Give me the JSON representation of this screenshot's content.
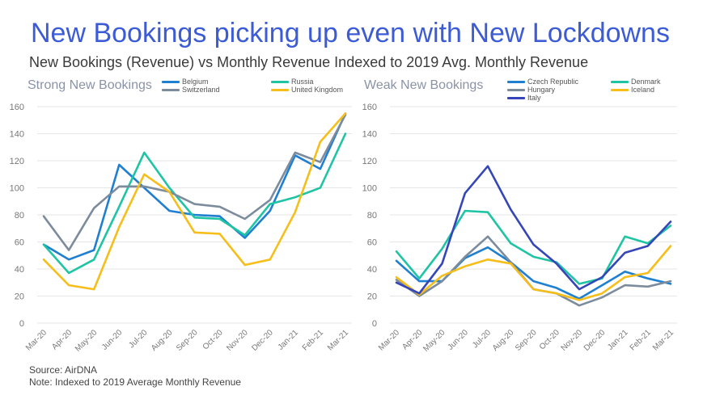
{
  "title": "New Bookings picking up even with New Lockdowns",
  "subtitle": "New Bookings (Revenue) vs Monthly Revenue Indexed to 2019 Avg. Monthly Revenue",
  "footer": {
    "source": "Source: AirDNA",
    "note": "Note: Indexed to 2019 Average Monthly Revenue"
  },
  "chart_data": [
    {
      "type": "line",
      "title": "Strong New Bookings",
      "categories": [
        "Mar-20",
        "Apr-20",
        "May-20",
        "Jun-20",
        "Jul-20",
        "Aug-20",
        "Sep-20",
        "Oct-20",
        "Nov-20",
        "Dec-20",
        "Jan-21",
        "Feb-21",
        "Mar-21"
      ],
      "ylim": [
        0,
        160
      ],
      "yticks": [
        0,
        20,
        40,
        60,
        80,
        100,
        120,
        140,
        160
      ],
      "grid": true,
      "legend_position": "top",
      "series": [
        {
          "name": "Belgium",
          "color": "#1f7fd0",
          "values": [
            58,
            47,
            54,
            117,
            100,
            83,
            80,
            79,
            63,
            83,
            124,
            114,
            155
          ]
        },
        {
          "name": "Russia",
          "color": "#1fc4a4",
          "values": [
            58,
            37,
            47,
            86,
            126,
            100,
            78,
            77,
            65,
            88,
            93,
            100,
            140
          ]
        },
        {
          "name": "Switzerland",
          "color": "#7c8c9c",
          "values": [
            79,
            54,
            85,
            101,
            101,
            97,
            88,
            86,
            77,
            91,
            126,
            119,
            154
          ]
        },
        {
          "name": "United Kingdom",
          "color": "#f5be1a",
          "values": [
            47,
            28,
            25,
            71,
            110,
            97,
            67,
            66,
            43,
            47,
            82,
            134,
            155
          ]
        }
      ]
    },
    {
      "type": "line",
      "title": "Weak New Bookings",
      "categories": [
        "Mar-20",
        "Apr-20",
        "May-20",
        "Jun-20",
        "Jul-20",
        "Aug-20",
        "Sep-20",
        "Oct-20",
        "Nov-20",
        "Dec-20",
        "Jan-21",
        "Feb-21",
        "Mar-21"
      ],
      "ylim": [
        0,
        160
      ],
      "yticks": [
        0,
        20,
        40,
        60,
        80,
        100,
        120,
        140,
        160
      ],
      "grid": true,
      "legend_position": "top",
      "series": [
        {
          "name": "Czech Republic",
          "color": "#1f7fd0",
          "values": [
            46,
            31,
            31,
            48,
            56,
            45,
            31,
            26,
            18,
            28,
            38,
            33,
            29
          ]
        },
        {
          "name": "Denmark",
          "color": "#1fc4a4",
          "values": [
            53,
            33,
            55,
            83,
            82,
            59,
            49,
            45,
            29,
            33,
            64,
            59,
            72
          ]
        },
        {
          "name": "Hungary",
          "color": "#7c8c9c",
          "values": [
            32,
            20,
            31,
            49,
            64,
            45,
            25,
            22,
            13,
            19,
            28,
            27,
            31
          ]
        },
        {
          "name": "Iceland",
          "color": "#f5be1a",
          "values": [
            34,
            21,
            35,
            42,
            47,
            44,
            25,
            22,
            17,
            22,
            34,
            37,
            57
          ]
        },
        {
          "name": "Italy",
          "color": "#3446b8",
          "values": [
            30,
            22,
            44,
            96,
            116,
            84,
            58,
            44,
            25,
            34,
            52,
            57,
            75
          ]
        }
      ]
    }
  ]
}
